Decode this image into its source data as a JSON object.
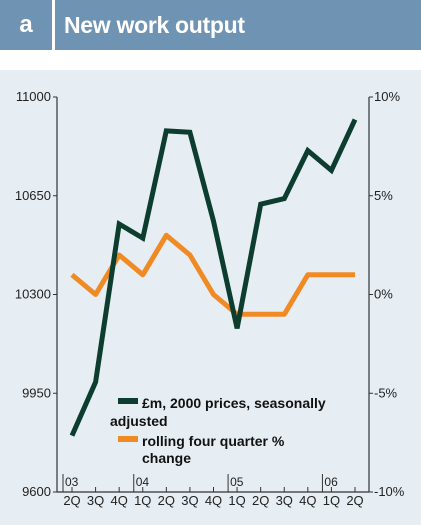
{
  "panel_label": "a",
  "title": "New work output",
  "colors": {
    "header_bg": "#6f93b3",
    "plot_bg": "#e6eef4",
    "primary_series": "#0d3d2e",
    "secondary_series": "#f08a24"
  },
  "chart_data": {
    "type": "line",
    "title": "New work output",
    "x": [
      "2Q",
      "3Q",
      "4Q",
      "1Q",
      "2Q",
      "3Q",
      "4Q",
      "1Q",
      "2Q",
      "3Q",
      "4Q",
      "1Q",
      "2Q"
    ],
    "year_labels": [
      {
        "label": "03",
        "index": 0
      },
      {
        "label": "04",
        "index": 3
      },
      {
        "label": "05",
        "index": 7
      },
      {
        "label": "06",
        "index": 11
      }
    ],
    "left_axis": {
      "ylim": [
        9600,
        11000
      ],
      "ticks": [
        "11000",
        "10650",
        "10300",
        "9950",
        "9600"
      ]
    },
    "right_axis": {
      "ylim": [
        -10,
        10
      ],
      "ticks": [
        "10%",
        "5%",
        "0%",
        "-5%",
        "-10%"
      ]
    },
    "series": [
      {
        "name": "£m, 2000 prices, seasonally adjusted",
        "axis": "left",
        "values": [
          9800,
          9990,
          10550,
          10500,
          10880,
          10875,
          10560,
          10180,
          10620,
          10640,
          10810,
          10740,
          10920
        ]
      },
      {
        "name": "rolling four quarter % change",
        "axis": "right",
        "values": [
          1.0,
          0.0,
          2.0,
          1.0,
          3.0,
          2.0,
          0.0,
          -1.0,
          -1.0,
          -1.0,
          1.0,
          1.0,
          1.0
        ]
      }
    ],
    "legend_position": "bottom-center",
    "grid": false
  }
}
